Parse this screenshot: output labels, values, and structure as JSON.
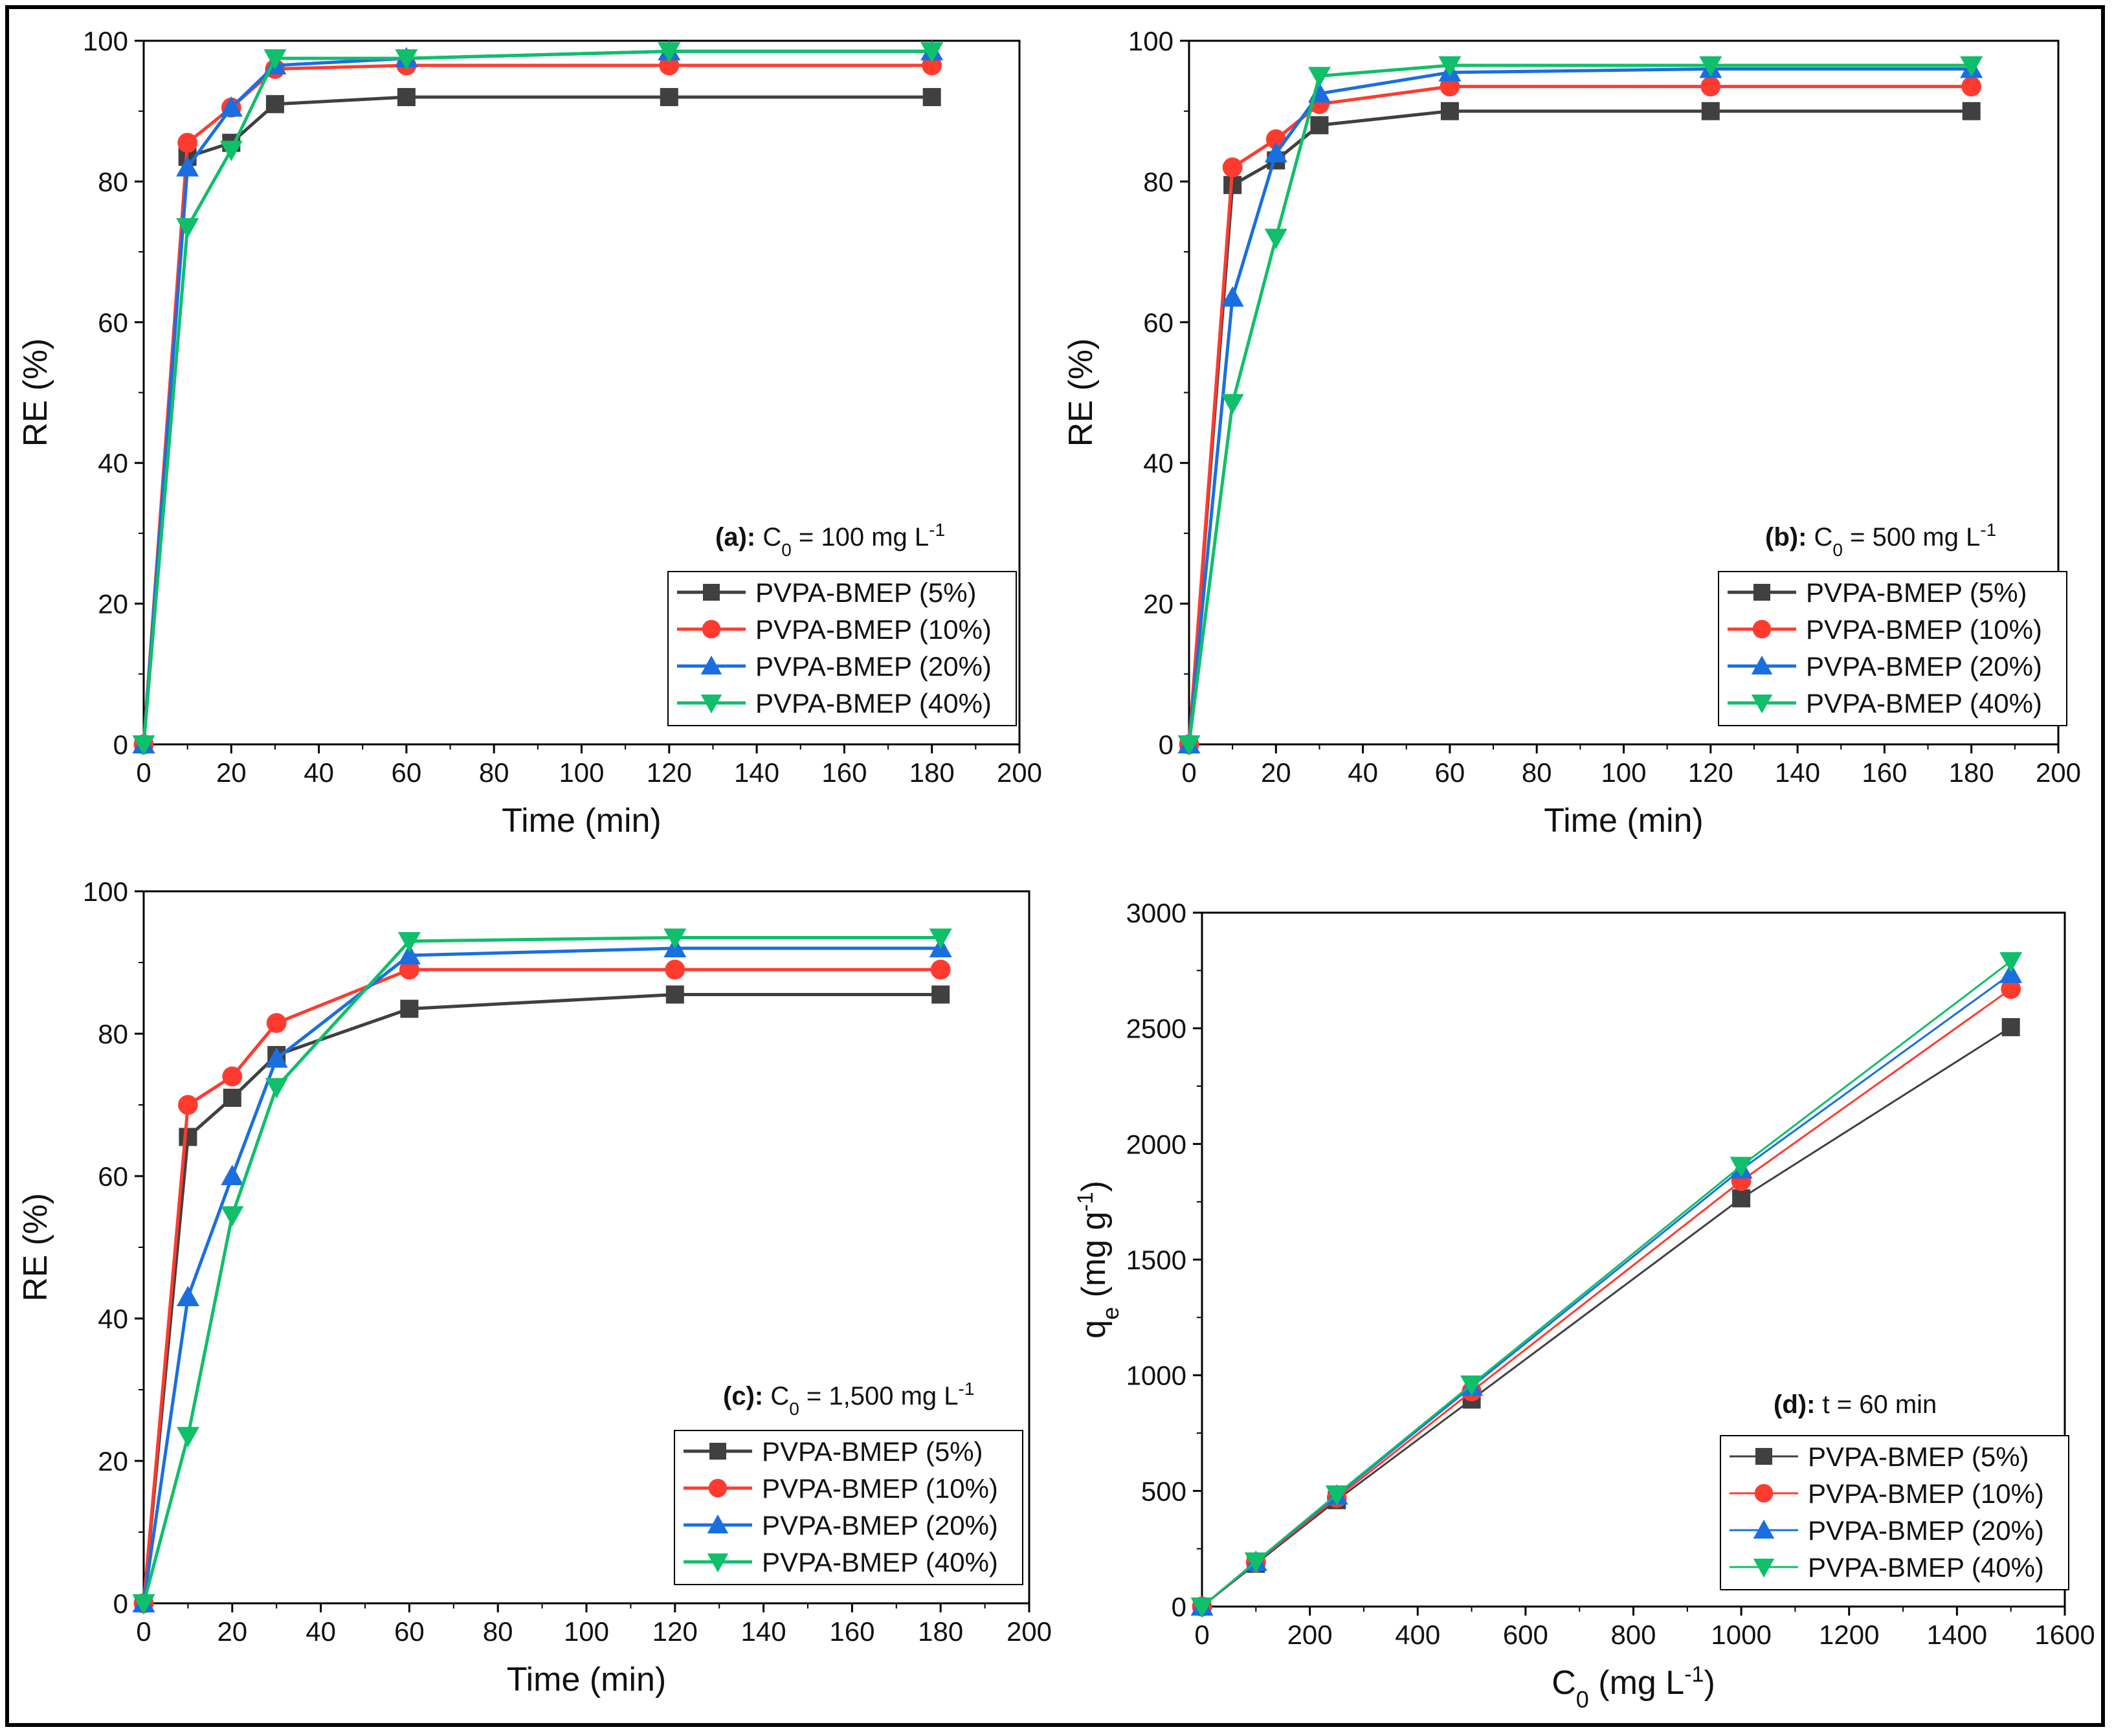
{
  "figure": {
    "panels": [
      {
        "condition": {
          "bold": "(a):",
          "prefix": "C",
          "sub": "0",
          "mid": " = 100 mg L",
          "sup": "-1",
          "suffix": ""
        },
        "xlabel": "Time (min)",
        "ylabel": "RE (%)"
      },
      {
        "condition": {
          "bold": "(b):",
          "prefix": "C",
          "sub": "0",
          "mid": " = 500 mg L",
          "sup": "-1",
          "suffix": ""
        },
        "xlabel": "Time (min)",
        "ylabel": "RE (%)"
      },
      {
        "condition": {
          "bold": "(c):",
          "prefix": "C",
          "sub": "0",
          "mid": " = 1,500 mg L",
          "sup": "-1",
          "suffix": ""
        },
        "xlabel": "Time (min)",
        "ylabel": "RE (%)"
      },
      {
        "condition": {
          "bold": "(d):",
          "prefix": "t = 60 min",
          "sub": "",
          "mid": "",
          "sup": "",
          "suffix": ""
        },
        "xlabel_parts": {
          "main": "C",
          "sub": "0",
          "mid": " (mg L",
          "sup": "-1",
          "end": ")"
        },
        "ylabel_parts": {
          "main": "q",
          "sub": "e",
          "mid": " (mg g",
          "sup": "-1",
          "end": ")"
        }
      }
    ]
  },
  "chart_data": [
    {
      "type": "line",
      "title": "(a): C0 = 100 mg L-1",
      "xlabel": "Time (min)",
      "ylabel": "RE (%)",
      "xlim": [
        0,
        200
      ],
      "ylim": [
        0,
        100
      ],
      "xticks": [
        0,
        20,
        40,
        60,
        80,
        100,
        120,
        140,
        160,
        180,
        200
      ],
      "yticks": [
        0,
        20,
        40,
        60,
        80,
        100
      ],
      "x": [
        0,
        10,
        20,
        30,
        60,
        120,
        180
      ],
      "legend_position": "bottom-right",
      "series": [
        {
          "name": "PVPA-BMEP (5%)",
          "color": "#404040",
          "marker": "square",
          "values": [
            0,
            83.5,
            85.5,
            91,
            92,
            92,
            92
          ]
        },
        {
          "name": "PVPA-BMEP (10%)",
          "color": "#ff3b30",
          "marker": "circle",
          "values": [
            0,
            85.5,
            90.5,
            96,
            96.5,
            96.5,
            96.5
          ]
        },
        {
          "name": "PVPA-BMEP (20%)",
          "color": "#1a6fe0",
          "marker": "triangle-up",
          "values": [
            0,
            82,
            90.5,
            96.5,
            97.5,
            98.5,
            98.5
          ]
        },
        {
          "name": "PVPA-BMEP (40%)",
          "color": "#0fbf6a",
          "marker": "triangle-down",
          "values": [
            0,
            73.5,
            84.5,
            97.5,
            97.5,
            98.5,
            98.5
          ]
        }
      ]
    },
    {
      "type": "line",
      "title": "(b): C0 = 500 mg L-1",
      "xlabel": "Time (min)",
      "ylabel": "RE (%)",
      "xlim": [
        0,
        200
      ],
      "ylim": [
        0,
        100
      ],
      "xticks": [
        0,
        20,
        40,
        60,
        80,
        100,
        120,
        140,
        160,
        180,
        200
      ],
      "yticks": [
        0,
        20,
        40,
        60,
        80,
        100
      ],
      "x": [
        0,
        10,
        20,
        30,
        60,
        120,
        180
      ],
      "legend_position": "bottom-right",
      "series": [
        {
          "name": "PVPA-BMEP (5%)",
          "color": "#404040",
          "marker": "square",
          "values": [
            0,
            79.5,
            83,
            88,
            90,
            90,
            90
          ]
        },
        {
          "name": "PVPA-BMEP (10%)",
          "color": "#ff3b30",
          "marker": "circle",
          "values": [
            0,
            82,
            86,
            91,
            93.5,
            93.5,
            93.5
          ]
        },
        {
          "name": "PVPA-BMEP (20%)",
          "color": "#1a6fe0",
          "marker": "triangle-up",
          "values": [
            0,
            63.5,
            84,
            92.5,
            95.5,
            96,
            96
          ]
        },
        {
          "name": "PVPA-BMEP (40%)",
          "color": "#0fbf6a",
          "marker": "triangle-down",
          "values": [
            0,
            48.5,
            72,
            95,
            96.5,
            96.5,
            96.5
          ]
        }
      ]
    },
    {
      "type": "line",
      "title": "(c): C0 = 1,500 mg L-1",
      "xlabel": "Time (min)",
      "ylabel": "RE (%)",
      "xlim": [
        0,
        200
      ],
      "ylim": [
        0,
        100
      ],
      "xticks": [
        0,
        20,
        40,
        60,
        80,
        100,
        120,
        140,
        160,
        180,
        200
      ],
      "yticks": [
        0,
        20,
        40,
        60,
        80,
        100
      ],
      "x": [
        0,
        10,
        20,
        30,
        60,
        120,
        180
      ],
      "legend_position": "bottom-right",
      "series": [
        {
          "name": "PVPA-BMEP (5%)",
          "color": "#404040",
          "marker": "square",
          "values": [
            0,
            65.5,
            71,
            77,
            83.5,
            85.5,
            85.5
          ]
        },
        {
          "name": "PVPA-BMEP (10%)",
          "color": "#ff3b30",
          "marker": "circle",
          "values": [
            0,
            70,
            74,
            81.5,
            89,
            89,
            89
          ]
        },
        {
          "name": "PVPA-BMEP (20%)",
          "color": "#1a6fe0",
          "marker": "triangle-up",
          "values": [
            0,
            43,
            60,
            76.5,
            91,
            92,
            92
          ]
        },
        {
          "name": "PVPA-BMEP (40%)",
          "color": "#0fbf6a",
          "marker": "triangle-down",
          "values": [
            0,
            23.5,
            54.5,
            72.5,
            93,
            93.5,
            93.5
          ]
        }
      ]
    },
    {
      "type": "line",
      "title": "(d): t = 60 min",
      "xlabel": "C0 (mg L-1)",
      "ylabel": "qe (mg g-1)",
      "xlim": [
        0,
        1600
      ],
      "ylim": [
        0,
        3000
      ],
      "xticks": [
        0,
        200,
        400,
        600,
        800,
        1000,
        1200,
        1400,
        1600
      ],
      "yticks": [
        0,
        500,
        1000,
        1500,
        2000,
        2500,
        3000
      ],
      "x": [
        0,
        100,
        250,
        500,
        1000,
        1500
      ],
      "legend_position": "bottom-right",
      "series": [
        {
          "name": "PVPA-BMEP (5%)",
          "color": "#404040",
          "marker": "square",
          "values": [
            0,
            185,
            460,
            895,
            1765,
            2505
          ]
        },
        {
          "name": "PVPA-BMEP (10%)",
          "color": "#ff3b30",
          "marker": "circle",
          "values": [
            0,
            190,
            470,
            930,
            1840,
            2670
          ]
        },
        {
          "name": "PVPA-BMEP (20%)",
          "color": "#1a6fe0",
          "marker": "triangle-up",
          "values": [
            0,
            193,
            480,
            950,
            1890,
            2735
          ]
        },
        {
          "name": "PVPA-BMEP (40%)",
          "color": "#0fbf6a",
          "marker": "triangle-down",
          "values": [
            0,
            195,
            485,
            960,
            1905,
            2790
          ]
        }
      ]
    }
  ]
}
